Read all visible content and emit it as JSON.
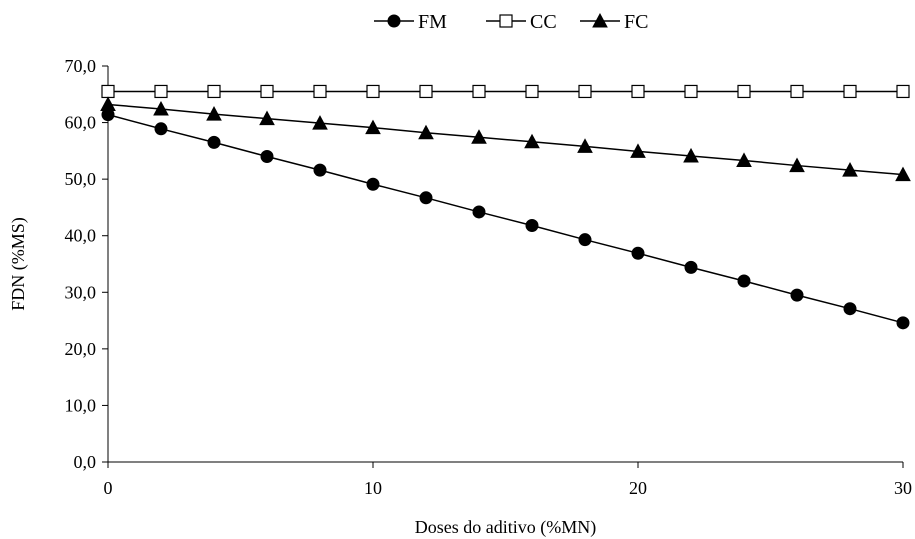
{
  "chart_data": {
    "type": "line",
    "title": "",
    "xlabel": "Doses do aditivo (%MN)",
    "ylabel": "FDN (%MS)",
    "xlim": [
      0,
      30
    ],
    "ylim": [
      0,
      70
    ],
    "x_ticks": [
      0,
      10,
      20,
      30
    ],
    "x_tick_labels": [
      "0",
      "10",
      "20",
      "30"
    ],
    "y_ticks": [
      0,
      10,
      20,
      30,
      40,
      50,
      60,
      70
    ],
    "y_tick_labels": [
      "0,0",
      "10,0",
      "20,0",
      "30,0",
      "40,0",
      "50,0",
      "60,0",
      "70,0"
    ],
    "grid": false,
    "legend_position": "top-center",
    "x": [
      0,
      2,
      4,
      6,
      8,
      10,
      12,
      14,
      16,
      18,
      20,
      22,
      24,
      26,
      28,
      30
    ],
    "series": [
      {
        "name": "FM",
        "marker": "filled-circle",
        "color": "#000000",
        "values": [
          61.4,
          58.9,
          56.5,
          54.0,
          51.6,
          49.1,
          46.7,
          44.2,
          41.8,
          39.3,
          36.9,
          34.4,
          32.0,
          29.5,
          27.1,
          24.6
        ]
      },
      {
        "name": "CC",
        "marker": "open-square",
        "color": "#000000",
        "values": [
          65.5,
          65.5,
          65.5,
          65.5,
          65.5,
          65.5,
          65.5,
          65.5,
          65.5,
          65.5,
          65.5,
          65.5,
          65.5,
          65.5,
          65.5,
          65.5
        ]
      },
      {
        "name": "FC",
        "marker": "filled-triangle",
        "color": "#000000",
        "values": [
          63.2,
          62.4,
          61.5,
          60.7,
          59.9,
          59.1,
          58.2,
          57.4,
          56.6,
          55.8,
          54.9,
          54.1,
          53.3,
          52.4,
          51.6,
          50.8
        ]
      }
    ]
  }
}
